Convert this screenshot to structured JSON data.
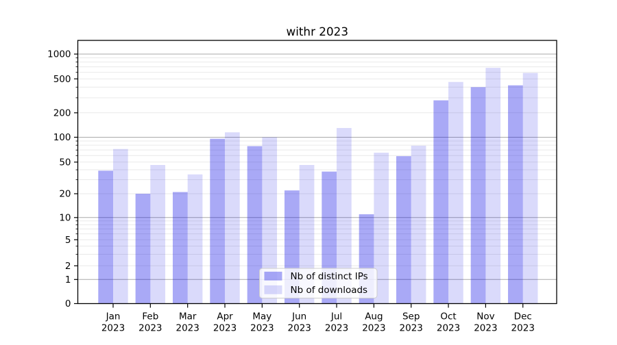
{
  "chart_data": {
    "type": "bar",
    "title": "withr 2023",
    "categories": [
      "Jan 2023",
      "Feb 2023",
      "Mar 2023",
      "Apr 2023",
      "May 2023",
      "Jun 2023",
      "Jul 2023",
      "Aug 2023",
      "Sep 2023",
      "Oct 2023",
      "Nov 2023",
      "Dec 2023"
    ],
    "series": [
      {
        "name": "Nb of distinct IPs",
        "key": "distinct-ips",
        "color": "#0a0ae6",
        "opacity": 0.35,
        "values": [
          39,
          20,
          21,
          96,
          78,
          22,
          38,
          11,
          59,
          280,
          400,
          420
        ]
      },
      {
        "name": "Nb of downloads",
        "key": "downloads",
        "color": "#0a0ae6",
        "opacity": 0.15,
        "values": [
          72,
          46,
          35,
          115,
          100,
          46,
          130,
          65,
          79,
          460,
          680,
          590
        ]
      }
    ],
    "xlabel": "",
    "ylabel": "",
    "yscale": "symlog",
    "ylim": [
      0,
      1400
    ],
    "yticks": [
      0,
      1,
      2,
      5,
      10,
      20,
      50,
      100,
      200,
      500,
      1000
    ],
    "grid": true,
    "legend_position": "inside lower center"
  },
  "style": {
    "background": "#ffffff",
    "bar_base_color": "#0a0ae6",
    "grid_major_color": "#aaaaaa",
    "grid_minor_color": "#e9e9e9",
    "axis_color": "#000000",
    "legend_border_color": "#cccccc",
    "legend_fill_color": "#ffffff"
  }
}
